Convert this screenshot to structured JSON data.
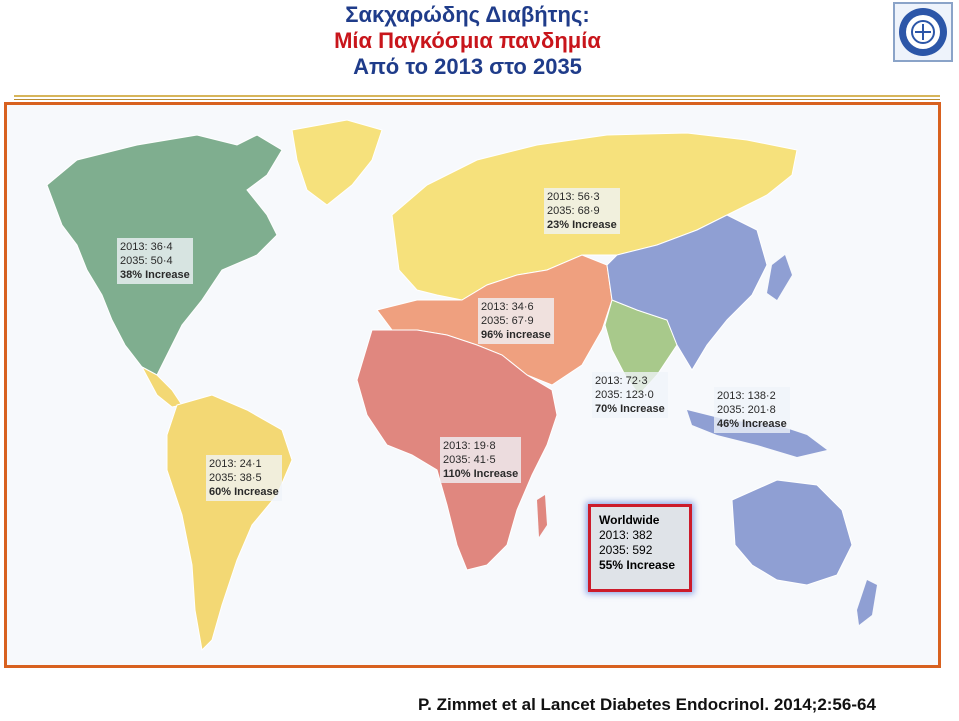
{
  "header": {
    "title_line1": "Σακχαρώδης Διαβήτης:",
    "title_line2": "Μία Παγκόσμια πανδημία",
    "title_line3": "Από το 2013 στο 2035"
  },
  "colors": {
    "north_america": "#7fae8f",
    "south_america": "#f3d874",
    "europe_north_asia": "#f6e17c",
    "middle_east_north_africa": "#efa07f",
    "africa": "#e0877f",
    "south_east_asia": "#a8c98b",
    "western_pacific": "#8f9fd3",
    "frame": "#d8611f",
    "highlight": "#cc1b2b"
  },
  "regions": [
    {
      "id": "north-america",
      "y2013": "2013: 36·4",
      "y2035": "2035: 50·4",
      "inc_num": "38%",
      "inc_word": " Increase"
    },
    {
      "id": "europe",
      "y2013": "2013: 56·3",
      "y2035": "2035: 68·9",
      "inc_num": "23%",
      "inc_word": " Increase"
    },
    {
      "id": "mena",
      "y2013": "2013: 34·6",
      "y2035": "2035: 67·9",
      "inc_num": "96%",
      "inc_word": " increase"
    },
    {
      "id": "sea",
      "y2013": "2013: 72·3",
      "y2035": "2035: 123·0",
      "inc_num": "70%",
      "inc_word": " Increase"
    },
    {
      "id": "wp",
      "y2013": "2013: 138·2",
      "y2035": "2035: 201·8",
      "inc_num": "46%",
      "inc_word": " Increase"
    },
    {
      "id": "africa",
      "y2013": "2013: 19·8",
      "y2035": "2035: 41·5",
      "inc_num": "110%",
      "inc_word": " Increase"
    },
    {
      "id": "south-america",
      "y2013": "2013: 24·1",
      "y2035": "2035: 38·5",
      "inc_num": "60%",
      "inc_word": " Increase"
    }
  ],
  "worldwide": {
    "title": "Worldwide",
    "y2013": "2013: 382",
    "y2035": "2035: 592",
    "inc_num": "55%",
    "inc_word": " Increase"
  },
  "citation": "P. Zimmet et al Lancet Diabetes Endocrinol. 2014;2:56-64"
}
